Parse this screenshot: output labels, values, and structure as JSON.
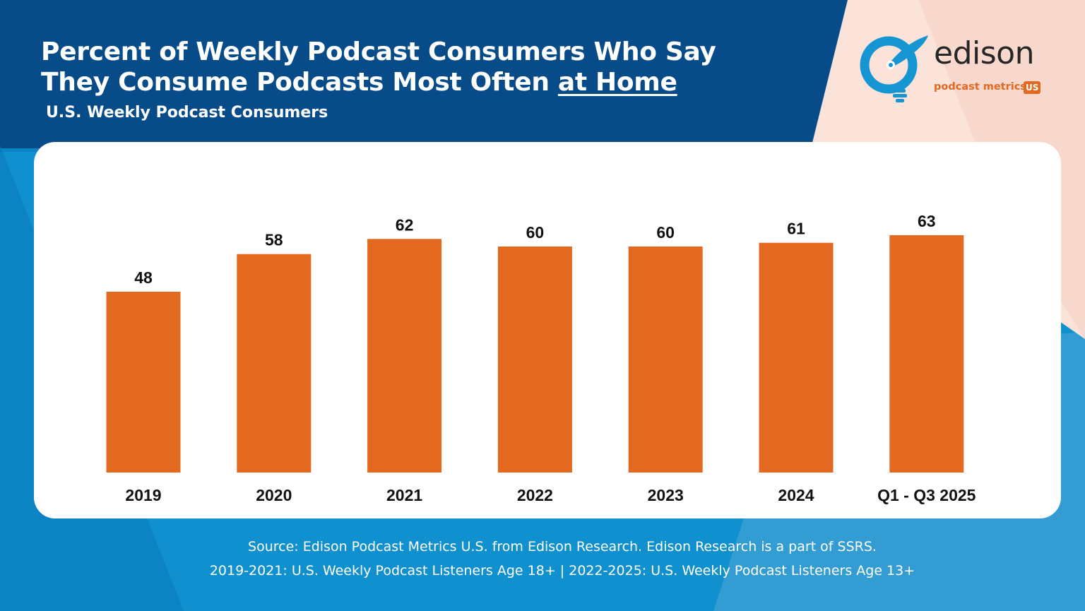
{
  "header": {
    "title_line1": "Percent of Weekly Podcast Consumers Who Say",
    "title_line2_prefix": "They Consume Podcasts Most Often ",
    "title_line2_emphasis": "at Home",
    "subtitle": "U.S. Weekly Podcast Consumers"
  },
  "logo": {
    "word": "edison",
    "sub": "podcast metrics",
    "badge": "US"
  },
  "colors": {
    "bar": "#e36920",
    "navy": "#074c89",
    "blue": "#0a84c4",
    "peach": "#fbe3da",
    "logo_blue": "#1695d3"
  },
  "chart_data": {
    "type": "bar",
    "title": "Percent of Weekly Podcast Consumers Who Say They Consume Podcasts Most Often at Home",
    "subtitle": "U.S. Weekly Podcast Consumers",
    "categories": [
      "2019",
      "2020",
      "2021",
      "2022",
      "2023",
      "2024",
      "Q1 - Q3 2025"
    ],
    "values": [
      48,
      58,
      62,
      60,
      60,
      61,
      63
    ],
    "xlabel": "",
    "ylabel": "",
    "ylim": [
      0,
      75
    ],
    "grid": false,
    "legend": "none",
    "data_labels": true
  },
  "footer": {
    "source_line1": "Source: Edison Podcast Metrics U.S. from Edison Research. Edison Research is a part of SSRS.",
    "source_line2": "2019-2021: U.S. Weekly Podcast Listeners Age 18+ | 2022-2025: U.S. Weekly Podcast Listeners Age 13+"
  }
}
